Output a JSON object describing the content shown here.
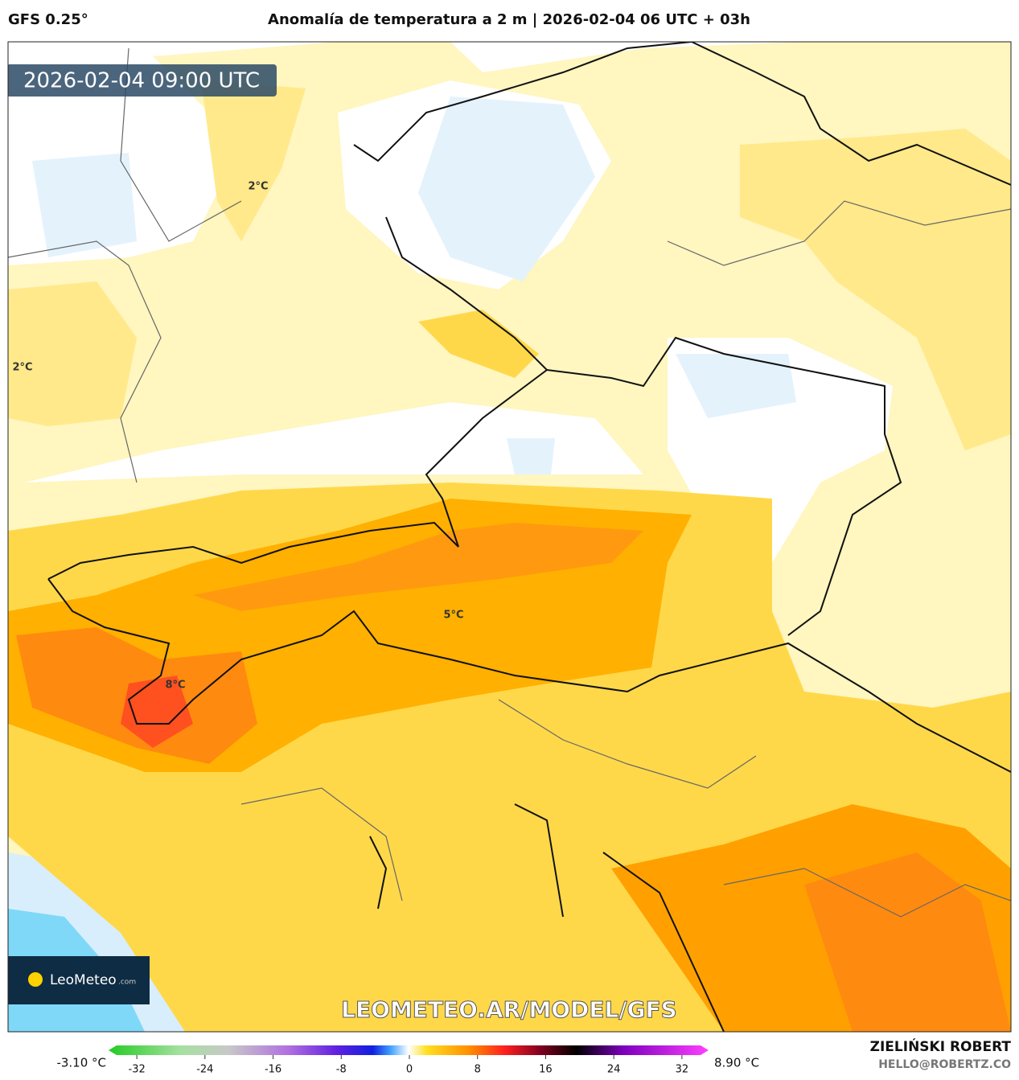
{
  "header": {
    "model": "GFS 0.25°",
    "title": "Anomalía de temperatura a 2 m | 2026-02-04 06 UTC + 03h"
  },
  "map": {
    "timestamp": "2026-02-04 09:00 UTC",
    "contour_labels": [
      "2°C",
      "2°C",
      "5°C",
      "8°C"
    ],
    "watermark": "LEOMETEO.AR/MODEL/GFS"
  },
  "logo": {
    "name": "LeoMeteo",
    "suffix": ".com"
  },
  "legend": {
    "min_label": "-3.10 °C",
    "max_label": "8.90 °C",
    "ticks": [
      -32,
      -24,
      -16,
      -8,
      0,
      8,
      16,
      24,
      32
    ]
  },
  "credits": {
    "author": "ZIELIŃSKI ROBERT",
    "email": "HELLO@ROBERTZ.CO"
  }
}
